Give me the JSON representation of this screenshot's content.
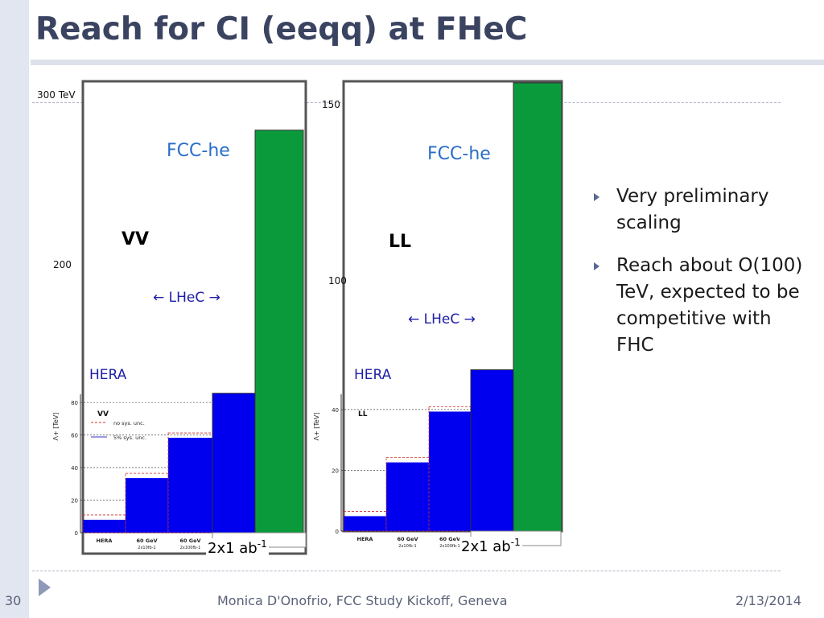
{
  "slide": {
    "title": "Reach for CI (eeqq) at FHeC",
    "number": "30",
    "footer": "Monica D'Onofrio, FCC Study Kickoff, Geneva",
    "date": "2/13/2014"
  },
  "bullets": [
    {
      "text": "Very preliminary scaling",
      "icon": "triangle-bullet-icon"
    },
    {
      "text": "Reach about O(100) TeV, expected to be competitive with FHC",
      "icon": "triangle-bullet-icon"
    }
  ],
  "colors": {
    "accent": "#3a4360",
    "fcc_bar": "#0a9a3c",
    "lhec_bar": "#0000ee",
    "fcc_label": "#2a6ec8"
  },
  "chart_data": [
    {
      "type": "bar",
      "coupling": "VV",
      "labels": {
        "fcc": "FCC-he",
        "lhec": "← LHeC →",
        "hera": "HERA",
        "lumi": "2x1 ab",
        "lumi_exp": "-1"
      },
      "outer_axis": {
        "top_label": "300 TeV",
        "mid_label": "200"
      },
      "inner_plot": {
        "legend_title": "VV",
        "legend": [
          "no sys. unc.",
          "5% sys. unc."
        ],
        "y_axis_label": "Λ+ [TeV]",
        "y_ticks": [
          "80",
          "60",
          "40",
          "20",
          "0"
        ],
        "categories": [
          "HERA",
          "60 GeV",
          "60 GeV"
        ],
        "category_sublabels": [
          "",
          "2x10fb-1",
          "2x100fb-1"
        ]
      },
      "categories": [
        "HERA",
        "60 GeV 2x10fb-1",
        "60 GeV 2x100fb-1",
        "2x1 ab-1",
        "FCC-he"
      ],
      "values": [
        9,
        38,
        66,
        97,
        280
      ],
      "ylim": [
        0,
        300
      ]
    },
    {
      "type": "bar",
      "coupling": "LL",
      "labels": {
        "fcc": "FCC-he",
        "lhec": "← LHeC →",
        "hera": "HERA",
        "lumi": "2x1 ab",
        "lumi_exp": "-1"
      },
      "outer_axis": {
        "top_label": "150",
        "mid_label": "100"
      },
      "inner_plot": {
        "legend_title": "LL",
        "legend": [],
        "y_axis_label": "Λ+ [TeV]",
        "y_ticks": [
          "40",
          "20",
          "0"
        ],
        "categories": [
          "HERA",
          "60 GeV",
          "60 GeV"
        ],
        "category_sublabels": [
          "",
          "2x10fb-1",
          "2x100fb-1"
        ]
      },
      "categories": [
        "HERA",
        "60 GeV 2x10fb-1",
        "60 GeV 2x100fb-1",
        "2x1 ab-1",
        "FCC-he"
      ],
      "values": [
        5,
        23,
        40,
        54,
        150
      ],
      "ylim": [
        0,
        150
      ]
    }
  ]
}
